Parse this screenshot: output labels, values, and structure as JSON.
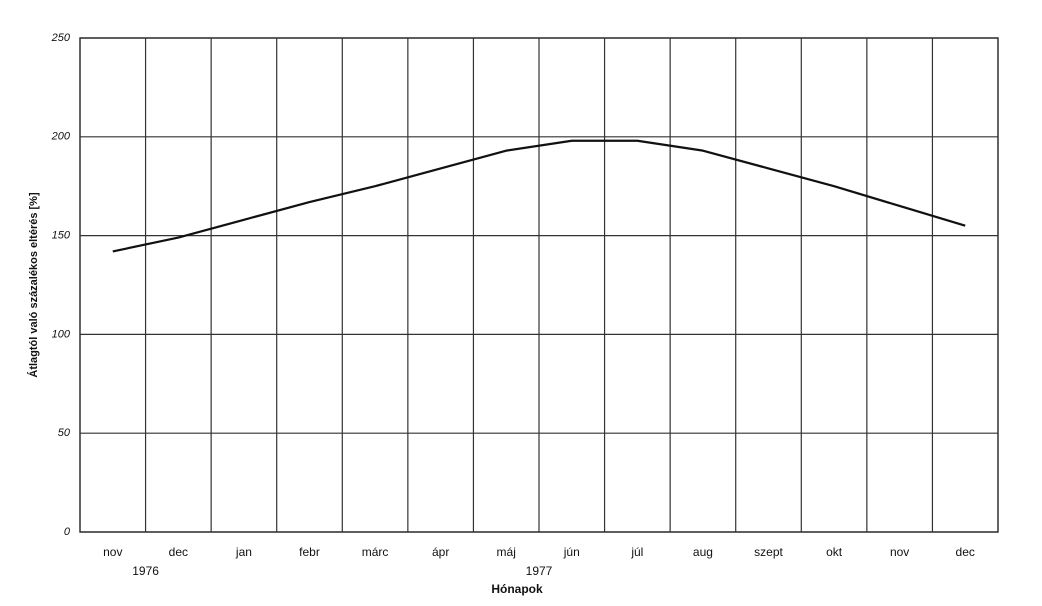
{
  "chart_data": {
    "type": "line",
    "x_label": "Hónapok",
    "y_label": "Átlagtól való százalékos eltérés [%]",
    "categories": [
      "nov",
      "dec",
      "jan",
      "febr",
      "márc",
      "ápr",
      "máj",
      "jún",
      "júl",
      "aug",
      "szept",
      "okt",
      "nov",
      "dec"
    ],
    "series": [
      {
        "color": "#111111",
        "values": [
          142,
          149,
          158,
          167,
          175,
          184,
          193,
          198,
          198,
          193,
          184,
          175,
          165,
          155
        ]
      }
    ],
    "annotations": [
      "1976",
      "1977"
    ],
    "ylim": [
      0,
      250
    ],
    "yticks": [
      0,
      50,
      100,
      150,
      200,
      250
    ],
    "grid": true
  }
}
